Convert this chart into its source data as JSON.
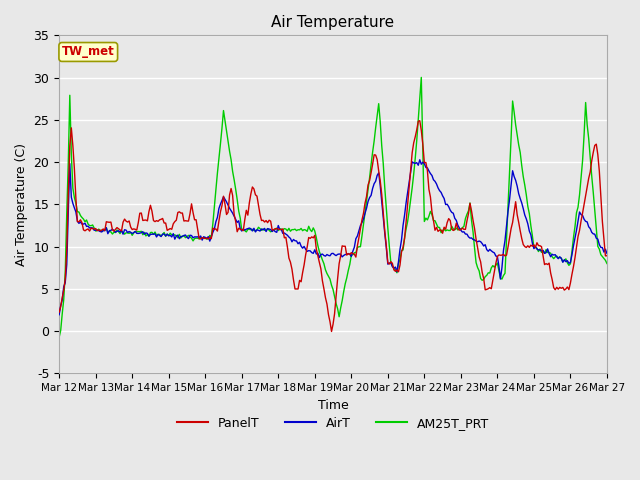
{
  "title": "Air Temperature",
  "xlabel": "Time",
  "ylabel": "Air Temperature (C)",
  "ylim": [
    -5,
    35
  ],
  "xlim": [
    0,
    360
  ],
  "plot_bg_color": "#e8e8e8",
  "grid_color": "#ffffff",
  "series": {
    "PanelT": {
      "color": "#cc0000",
      "linewidth": 1.0
    },
    "AirT": {
      "color": "#0000cc",
      "linewidth": 1.0
    },
    "AM25T_PRT": {
      "color": "#00cc00",
      "linewidth": 1.0
    }
  },
  "xtick_labels": [
    "Mar 12",
    "Mar 13",
    "Mar 14",
    "Mar 15",
    "Mar 16",
    "Mar 17",
    "Mar 18",
    "Mar 19",
    "Mar 20",
    "Mar 21",
    "Mar 22",
    "Mar 23",
    "Mar 24",
    "Mar 25",
    "Mar 26",
    "Mar 27"
  ],
  "xtick_positions": [
    0,
    24,
    48,
    72,
    96,
    120,
    144,
    168,
    192,
    216,
    240,
    264,
    288,
    312,
    336,
    360
  ],
  "ytick_labels": [
    "-5",
    "0",
    "5",
    "10",
    "15",
    "20",
    "25",
    "30",
    "35"
  ],
  "ytick_positions": [
    -5,
    0,
    5,
    10,
    15,
    20,
    25,
    30,
    35
  ],
  "annotation_text": "TW_met",
  "annotation_color": "#cc0000",
  "annotation_bg": "#ffffcc",
  "annotation_border": "#999900",
  "base_x": [
    0,
    1,
    2,
    3,
    4,
    5,
    6,
    7,
    8,
    9,
    10,
    11,
    12,
    13,
    14,
    15,
    16,
    17,
    18,
    19,
    20,
    21,
    22,
    23,
    24,
    25,
    26,
    27,
    28,
    29,
    30,
    31,
    32,
    33,
    34,
    35,
    36,
    37,
    38,
    39,
    40,
    41,
    42,
    43,
    44,
    45,
    46,
    47,
    48,
    49,
    50,
    51,
    52,
    53,
    54,
    55,
    56,
    57,
    58,
    59,
    60,
    61,
    62,
    63,
    64,
    65,
    66,
    67,
    68,
    69,
    70,
    71,
    72,
    73,
    74,
    75,
    76,
    77,
    78,
    79,
    80,
    81,
    82,
    83,
    84,
    85,
    86,
    87,
    88,
    89,
    90,
    91,
    92,
    93,
    94,
    95,
    96,
    97,
    98,
    99,
    100,
    101,
    102,
    103,
    104,
    105,
    106,
    107,
    108,
    109,
    110,
    111,
    112,
    113,
    114,
    115,
    116,
    117,
    118,
    119,
    120,
    121,
    122,
    123,
    124,
    125,
    126,
    127,
    128,
    129,
    130,
    131,
    132,
    133,
    134,
    135,
    136,
    137,
    138,
    139,
    140,
    141,
    142,
    143,
    144,
    145,
    146,
    147,
    148,
    149,
    150,
    151,
    152,
    153,
    154,
    155,
    156,
    157,
    158,
    159,
    160,
    161,
    162,
    163,
    164,
    165,
    166,
    167,
    168,
    169,
    170,
    171,
    172,
    173,
    174,
    175,
    176,
    177,
    178,
    179,
    180,
    181,
    182,
    183,
    184,
    185,
    186,
    187,
    188,
    189,
    190,
    191,
    192,
    193,
    194,
    195,
    196,
    197,
    198,
    199,
    200,
    201,
    202,
    203,
    204,
    205,
    206,
    207,
    208,
    209,
    210,
    211,
    212,
    213,
    214,
    215,
    216,
    217,
    218,
    219,
    220,
    221,
    222,
    223,
    224,
    225,
    226,
    227,
    228,
    229,
    230,
    231,
    232,
    233,
    234,
    235,
    236,
    237,
    238,
    239,
    240,
    241,
    242,
    243,
    244,
    245,
    246,
    247,
    248,
    249,
    250,
    251,
    252,
    253,
    254,
    255,
    256,
    257,
    258,
    259,
    260,
    261,
    262,
    263,
    264,
    265,
    266,
    267,
    268,
    269,
    270,
    271,
    272,
    273,
    274,
    275,
    276,
    277,
    278,
    279,
    280,
    281,
    282,
    283,
    284,
    285,
    286,
    287,
    288,
    289,
    290,
    291,
    292,
    293,
    294,
    295,
    296,
    297,
    298,
    299,
    300,
    301,
    302,
    303,
    304,
    305,
    306,
    307,
    308,
    309,
    310,
    311,
    312,
    313,
    314,
    315,
    316,
    317,
    318,
    319,
    320,
    321,
    322,
    323,
    324,
    325,
    326,
    327,
    328,
    329,
    330,
    331,
    332,
    333,
    334,
    335,
    336,
    337,
    338,
    339,
    340,
    341,
    342,
    343,
    344,
    345,
    346,
    347,
    348,
    349,
    350,
    351,
    352,
    353,
    354,
    355,
    356,
    357,
    358,
    359,
    360
  ],
  "base_y": [
    2,
    3,
    4,
    5,
    6,
    10,
    16,
    22,
    24,
    22,
    19,
    16,
    13,
    13,
    13,
    13,
    12,
    12,
    12,
    12,
    12,
    12,
    12,
    12,
    12,
    12,
    12,
    12,
    12,
    12,
    12,
    13,
    13,
    13,
    13,
    12,
    12,
    12,
    12,
    12,
    12,
    12,
    13,
    13,
    13,
    13,
    13,
    12,
    12,
    12,
    12,
    12,
    13,
    14,
    14,
    13,
    13,
    13,
    13,
    14,
    15,
    14,
    13,
    13,
    13,
    13,
    13,
    13,
    13,
    13,
    13,
    12,
    12,
    12,
    12,
    13,
    13,
    13,
    14,
    14,
    14,
    14,
    13,
    13,
    13,
    13,
    14,
    15,
    14,
    13,
    13,
    12,
    11,
    11,
    11,
    11,
    11,
    11,
    11,
    11,
    11,
    12,
    12,
    12,
    12,
    13,
    14,
    15,
    16,
    15,
    14,
    14,
    16,
    17,
    16,
    14,
    13,
    12,
    12,
    12,
    12,
    12,
    13,
    14,
    14,
    15,
    16,
    17,
    17,
    16,
    16,
    15,
    14,
    13,
    13,
    13,
    13,
    13,
    13,
    13,
    12,
    12,
    12,
    12,
    12,
    12,
    12,
    12,
    11,
    11,
    10,
    9,
    8,
    7,
    6,
    5,
    5,
    5,
    6,
    6,
    7,
    8,
    9,
    10,
    11,
    11,
    11,
    11,
    11,
    10,
    9,
    8,
    7,
    6,
    5,
    4,
    3,
    2,
    1,
    0,
    1,
    2,
    4,
    6,
    8,
    9,
    10,
    10,
    10,
    9,
    9,
    9,
    9,
    9,
    9,
    9,
    10,
    11,
    12,
    13,
    14,
    15,
    16,
    17,
    18,
    19,
    20,
    21,
    21,
    20,
    19,
    18,
    16,
    14,
    12,
    10,
    8,
    8,
    8,
    8,
    7,
    7,
    7,
    7,
    8,
    9,
    10,
    11,
    13,
    15,
    17,
    19,
    21,
    22,
    23,
    24,
    25,
    25,
    24,
    22,
    20,
    20,
    19,
    17,
    16,
    14,
    13,
    12,
    12,
    12,
    12,
    12,
    12,
    12,
    12,
    13,
    13,
    13,
    12,
    12,
    12,
    13,
    12,
    12,
    12,
    12,
    12,
    12,
    13,
    14,
    15,
    14,
    13,
    12,
    11,
    10,
    9,
    8,
    7,
    6,
    5,
    5,
    5,
    5,
    5,
    6,
    7,
    8,
    9,
    9,
    9,
    9,
    9,
    9,
    9,
    10,
    11,
    12,
    13,
    14,
    15,
    14,
    13,
    12,
    11,
    10,
    10,
    10,
    10,
    10,
    10,
    10,
    10,
    10,
    10,
    10,
    10,
    10,
    9,
    8,
    8,
    8,
    8,
    7,
    6,
    5,
    5,
    5,
    5,
    5,
    5,
    5,
    5,
    5,
    5,
    5,
    6,
    7,
    8,
    9,
    10,
    11,
    12,
    13,
    14,
    15,
    16,
    17,
    18,
    19,
    20,
    21,
    22,
    22,
    21,
    19,
    16,
    13,
    11,
    9,
    9
  ]
}
